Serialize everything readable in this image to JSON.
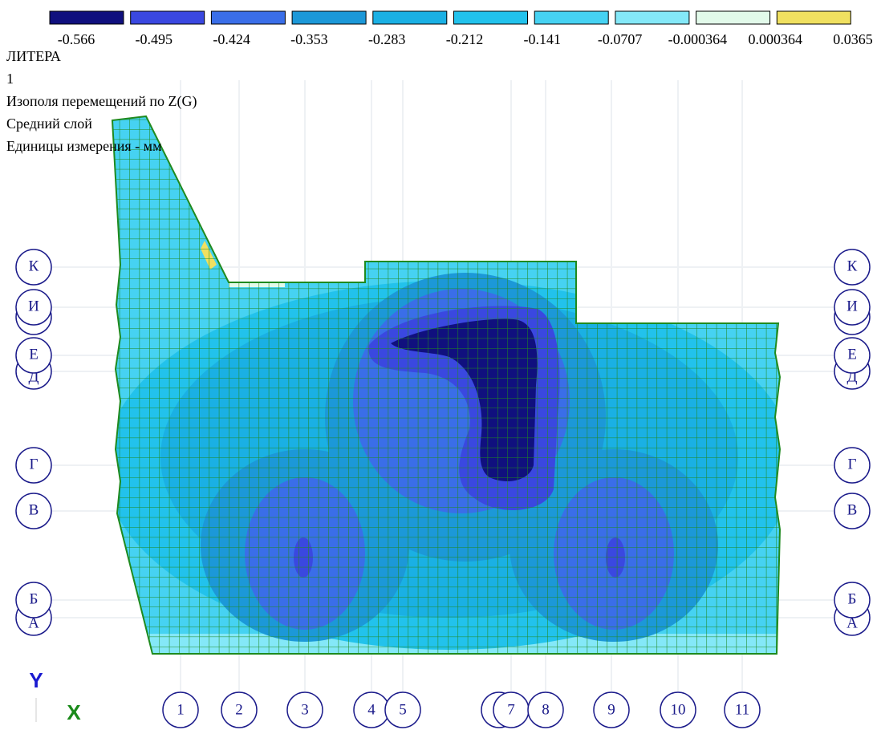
{
  "legend": {
    "colors": [
      "#10107e",
      "#3a48e0",
      "#3a6ee8",
      "#1c98d8",
      "#1ab0e4",
      "#22c2ec",
      "#46d2f2",
      "#84e8f8",
      "#e2faea",
      "#f0e060"
    ],
    "labels": [
      "-0.566",
      "-0.495",
      "-0.424",
      "-0.353",
      "-0.283",
      "-0.212",
      "-0.141",
      "-0.0707",
      "-0.000364",
      "0.000364",
      "0.0365"
    ]
  },
  "info": [
    "ЛИТЕРА",
    "1",
    "Изополя  перемещений по Z(G)",
    "Средний слой",
    "Единицы измерения - мм"
  ],
  "rows": [
    "К",
    "И",
    "Е",
    "Д",
    "Г",
    "В",
    "Б",
    "А"
  ],
  "columns": [
    "1",
    "2",
    "3",
    "4",
    "5",
    "7",
    "8",
    "9",
    "10",
    "11"
  ],
  "axes": {
    "y": "Y",
    "x": "X"
  }
}
